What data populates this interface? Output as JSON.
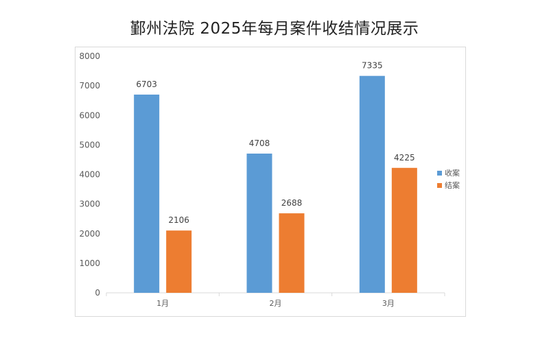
{
  "chart_data": {
    "type": "bar",
    "title": "鄞州法院 2025年每月案件收结情况展示",
    "categories": [
      "1月",
      "2月",
      "3月"
    ],
    "series": [
      {
        "name": "收案",
        "values": [
          6703,
          4708,
          7335
        ],
        "color": "#5b9bd5"
      },
      {
        "name": "结案",
        "values": [
          2106,
          2688,
          4225
        ],
        "color": "#ed7d31"
      }
    ],
    "ylim": [
      0,
      8000
    ],
    "yticks": [
      0,
      1000,
      2000,
      3000,
      4000,
      5000,
      6000,
      7000,
      8000
    ],
    "xlabel": "",
    "ylabel": "",
    "grid": false,
    "legend_position": "right"
  }
}
